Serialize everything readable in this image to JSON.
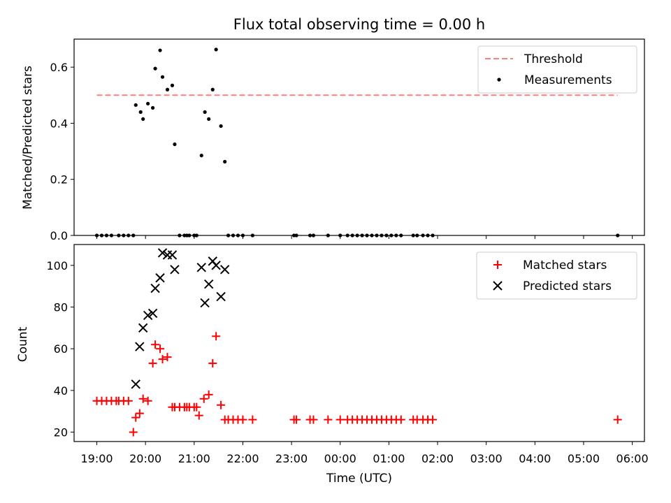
{
  "chart_data": [
    {
      "type": "scatter",
      "title": "Flux total observing time = 0.00 h",
      "xlabel": "",
      "ylabel": "Matched/Predicted stars",
      "ylim": [
        0,
        0.7
      ],
      "yticks": [
        0.0,
        0.2,
        0.4,
        0.6
      ],
      "ytick_labels": [
        "0.0",
        "0.2",
        "0.4",
        "0.6"
      ],
      "xlim_hours": [
        18.533,
        30.25
      ],
      "x_unit": "hours after 00:00 UTC of first night (values >24 are next day)",
      "legend_position": "top-right",
      "threshold": {
        "name": "Threshold",
        "value": 0.5,
        "x_range": [
          19.0,
          29.7
        ],
        "color": "#ff7f7f"
      },
      "series": [
        {
          "name": "Measurements",
          "color": "#000000",
          "x": [
            19.0,
            19.1,
            19.2,
            19.3,
            19.45,
            19.55,
            19.65,
            19.75,
            19.8,
            19.9,
            19.95,
            20.05,
            20.15,
            20.2,
            20.3,
            20.35,
            20.45,
            20.55,
            20.6,
            20.7,
            20.8,
            20.85,
            20.9,
            21.0,
            21.05,
            21.15,
            21.22,
            21.3,
            21.38,
            21.45,
            21.55,
            21.63,
            21.7,
            21.8,
            21.9,
            22.0,
            22.2,
            23.05,
            23.1,
            23.38,
            23.45,
            23.75,
            24.0,
            24.15,
            24.25,
            24.35,
            24.45,
            24.55,
            24.65,
            24.75,
            24.85,
            24.95,
            25.05,
            25.15,
            25.25,
            25.5,
            25.58,
            25.7,
            25.8,
            25.9,
            29.7
          ],
          "y": [
            0,
            0,
            0,
            0,
            0,
            0,
            0,
            0,
            0.465,
            0.44,
            0.415,
            0.47,
            0.455,
            0.595,
            0.66,
            0.565,
            0.52,
            0.535,
            0.325,
            0,
            0,
            0,
            0,
            0,
            0,
            0.285,
            0.44,
            0.415,
            0.52,
            0.663,
            0.39,
            0.263,
            0,
            0,
            0,
            0,
            0,
            0,
            0,
            0,
            0,
            0,
            0,
            0,
            0,
            0,
            0,
            0,
            0,
            0,
            0,
            0,
            0,
            0,
            0,
            0,
            0,
            0,
            0,
            0,
            0
          ]
        }
      ]
    },
    {
      "type": "scatter",
      "title": "",
      "xlabel": "Time (UTC)",
      "ylabel": "Count",
      "ylim": [
        15.5,
        110
      ],
      "yticks": [
        20,
        40,
        60,
        80,
        100
      ],
      "ytick_labels": [
        "20",
        "40",
        "60",
        "80",
        "100"
      ],
      "xlim_hours": [
        18.533,
        30.25
      ],
      "xticks": [
        19,
        20,
        21,
        22,
        23,
        24,
        25,
        26,
        27,
        28,
        29,
        30
      ],
      "xtick_labels": [
        "19:00",
        "20:00",
        "21:00",
        "22:00",
        "23:00",
        "00:00",
        "01:00",
        "02:00",
        "03:00",
        "04:00",
        "05:00",
        "06:00"
      ],
      "legend_position": "top-right",
      "series": [
        {
          "name": "Matched stars",
          "marker": "+",
          "color": "#ff0000",
          "x": [
            19.0,
            19.1,
            19.2,
            19.3,
            19.4,
            19.45,
            19.55,
            19.65,
            19.75,
            19.8,
            19.88,
            19.95,
            20.05,
            20.15,
            20.2,
            20.3,
            20.35,
            20.45,
            20.55,
            20.6,
            20.7,
            20.8,
            20.85,
            20.9,
            21.0,
            21.05,
            21.1,
            21.2,
            21.3,
            21.38,
            21.45,
            21.55,
            21.63,
            21.7,
            21.8,
            21.9,
            22.0,
            22.2,
            23.05,
            23.1,
            23.38,
            23.45,
            23.75,
            24.0,
            24.15,
            24.25,
            24.35,
            24.45,
            24.55,
            24.65,
            24.75,
            24.85,
            24.95,
            25.05,
            25.15,
            25.25,
            25.5,
            25.58,
            25.7,
            25.8,
            25.9,
            29.7
          ],
          "y": [
            35,
            35,
            35,
            35,
            35,
            35,
            35,
            35,
            20,
            27,
            29,
            36,
            35,
            53,
            62,
            60,
            55,
            56,
            32,
            32,
            32,
            32,
            32,
            32,
            32,
            32,
            28,
            36,
            38,
            53,
            66,
            33,
            26,
            26,
            26,
            26,
            26,
            26,
            26,
            26,
            26,
            26,
            26,
            26,
            26,
            26,
            26,
            26,
            26,
            26,
            26,
            26,
            26,
            26,
            26,
            26,
            26,
            26,
            26,
            26,
            26,
            26
          ]
        },
        {
          "name": "Predicted stars",
          "marker": "x",
          "color": "#000000",
          "x": [
            19.8,
            19.88,
            19.95,
            20.05,
            20.15,
            20.2,
            20.3,
            20.35,
            20.45,
            20.55,
            20.6,
            21.15,
            21.22,
            21.3,
            21.38,
            21.45,
            21.55,
            21.63
          ],
          "y": [
            43,
            61,
            70,
            76,
            77,
            89,
            94,
            106,
            105,
            105,
            98,
            99,
            82,
            91,
            102,
            100,
            85,
            98
          ]
        }
      ]
    }
  ]
}
